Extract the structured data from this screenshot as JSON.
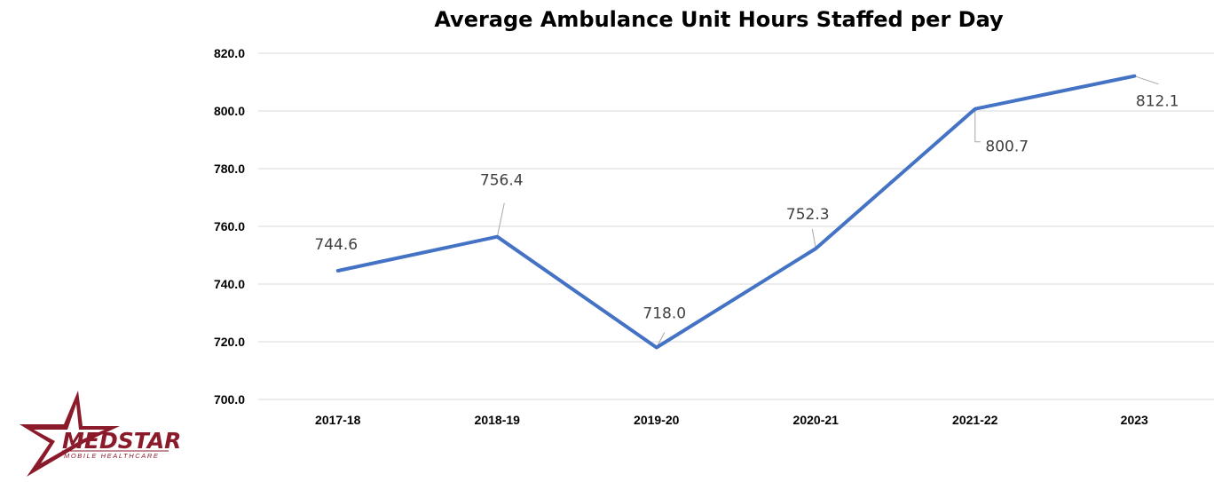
{
  "chart_data": {
    "type": "line",
    "title": "Average Ambulance Unit Hours Staffed per Day",
    "categories": [
      "2017-18",
      "2018-19",
      "2019-20",
      "2020-21",
      "2021-22",
      "2023"
    ],
    "series": [
      {
        "values": [
          744.6,
          756.4,
          718.0,
          752.3,
          800.7,
          812.1
        ]
      }
    ],
    "data_labels": [
      "744.6",
      "756.4",
      "718.0",
      "752.3",
      "800.7",
      "812.1"
    ],
    "ylim": [
      700,
      820
    ],
    "ytick_labels": [
      "700.0",
      "720.0",
      "740.0",
      "760.0",
      "780.0",
      "800.0",
      "820.0"
    ],
    "grid": true,
    "legend": "none",
    "line_color": "#4472c4"
  },
  "logo": {
    "wordmark": "MEDSTAR",
    "tagline": "MOBILE HEALTHCARE",
    "color": "#8b1a2b"
  }
}
